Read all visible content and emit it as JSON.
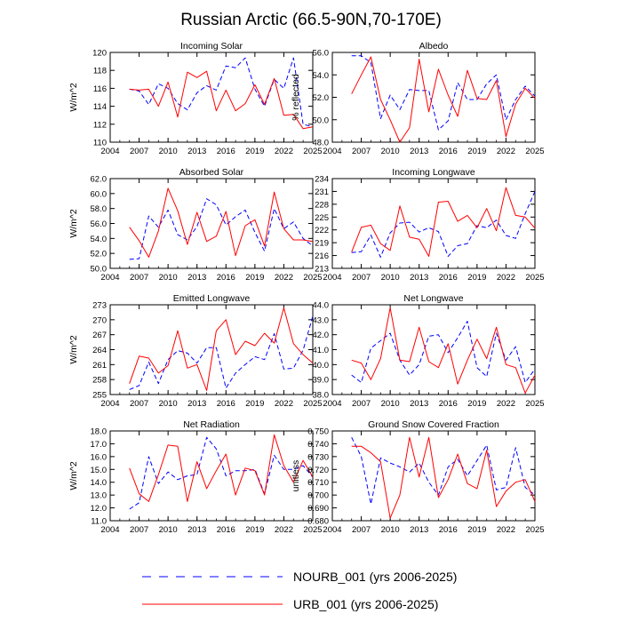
{
  "figure_title": "Russian Arctic (66.5-90N,70-170E)",
  "legend": {
    "entries": [
      {
        "label": "NOURB_001 (yrs 2006-2025)",
        "color": "#0000ff",
        "style": "dashed"
      },
      {
        "label": "URB_001 (yrs 2006-2025)",
        "color": "#ff0000",
        "style": "solid"
      }
    ]
  },
  "chart_data": [
    {
      "type": "line",
      "title": "Incoming Solar",
      "ylabel": "W/m^2",
      "xlim": [
        2004,
        2025
      ],
      "ylim": [
        110,
        120
      ],
      "xticks": [
        2004,
        2007,
        2010,
        2013,
        2016,
        2019,
        2022,
        2025
      ],
      "yticks": [
        110,
        112,
        114,
        116,
        118,
        120
      ],
      "ytick_labels": [
        "110",
        "112",
        "114",
        "116",
        "118",
        "120"
      ],
      "x": [
        2006,
        2007,
        2008,
        2009,
        2010,
        2011,
        2012,
        2013,
        2014,
        2015,
        2016,
        2017,
        2018,
        2019,
        2020,
        2021,
        2022,
        2023,
        2024,
        2025
      ],
      "series": [
        {
          "name": "NOURB_001 (yrs 2006-2025)",
          "color": "#0000ff",
          "style": "dashed",
          "values": [
            115.9,
            115.7,
            114.2,
            116.5,
            116.0,
            114.3,
            113.6,
            115.5,
            116.3,
            115.8,
            118.5,
            118.3,
            119.4,
            115.9,
            114.0,
            117.0,
            116.0,
            119.4,
            112.0,
            111.7
          ]
        },
        {
          "name": "URB_001 (yrs 2006-2025)",
          "color": "#ff0000",
          "style": "solid",
          "values": [
            115.9,
            115.8,
            115.9,
            114.0,
            116.7,
            112.8,
            117.8,
            117.2,
            117.9,
            113.5,
            115.8,
            113.5,
            114.3,
            116.4,
            114.2,
            117.1,
            113.0,
            113.1,
            111.5,
            111.7
          ]
        }
      ]
    },
    {
      "type": "line",
      "title": "Albedo",
      "ylabel": "% reflected",
      "xlim": [
        2004,
        2025
      ],
      "ylim": [
        48,
        56
      ],
      "xticks": [
        2004,
        2007,
        2010,
        2013,
        2016,
        2019,
        2022,
        2025
      ],
      "yticks": [
        48,
        50,
        52,
        54,
        56
      ],
      "ytick_labels": [
        "48.0",
        "50.0",
        "52.0",
        "54.0",
        "56.0"
      ],
      "x": [
        2006,
        2007,
        2008,
        2009,
        2010,
        2011,
        2012,
        2013,
        2014,
        2015,
        2016,
        2017,
        2018,
        2019,
        2020,
        2021,
        2022,
        2023,
        2024,
        2025
      ],
      "series": [
        {
          "name": "NOURB_001 (yrs 2006-2025)",
          "color": "#0000ff",
          "style": "dashed",
          "values": [
            55.7,
            55.7,
            55.1,
            50.1,
            52.2,
            50.9,
            52.7,
            52.6,
            52.6,
            49.1,
            49.9,
            53.3,
            51.8,
            51.8,
            53.2,
            54.0,
            50.0,
            51.8,
            53.0,
            52.1
          ]
        },
        {
          "name": "URB_001 (yrs 2006-2025)",
          "color": "#ff0000",
          "style": "solid",
          "values": [
            52.3,
            54.0,
            55.6,
            51.8,
            50.0,
            48.0,
            49.3,
            55.4,
            50.7,
            54.5,
            52.2,
            50.3,
            54.4,
            51.9,
            51.8,
            53.5,
            48.5,
            51.4,
            52.8,
            51.9
          ]
        }
      ]
    },
    {
      "type": "line",
      "title": "Absorbed Solar",
      "ylabel": "W/m^2",
      "xlim": [
        2004,
        2025
      ],
      "ylim": [
        50,
        62
      ],
      "xticks": [
        2004,
        2007,
        2010,
        2013,
        2016,
        2019,
        2022,
        2025
      ],
      "yticks": [
        50,
        52,
        54,
        56,
        58,
        60,
        62
      ],
      "ytick_labels": [
        "50.0",
        "52.0",
        "54.0",
        "56.0",
        "58.0",
        "60.0",
        "62.0"
      ],
      "x": [
        2006,
        2007,
        2008,
        2009,
        2010,
        2011,
        2012,
        2013,
        2014,
        2015,
        2016,
        2017,
        2018,
        2019,
        2020,
        2021,
        2022,
        2023,
        2024,
        2025
      ],
      "series": [
        {
          "name": "NOURB_001 (yrs 2006-2025)",
          "color": "#0000ff",
          "style": "dashed",
          "values": [
            51.2,
            51.3,
            57.0,
            55.5,
            57.8,
            54.5,
            53.8,
            55.6,
            59.3,
            58.5,
            55.8,
            56.9,
            57.8,
            54.8,
            52.3,
            58.0,
            55.3,
            56.2,
            54.0,
            53.0
          ]
        },
        {
          "name": "URB_001 (yrs 2006-2025)",
          "color": "#ff0000",
          "style": "solid",
          "values": [
            55.5,
            53.7,
            51.5,
            55.0,
            60.7,
            57.7,
            53.2,
            57.5,
            53.6,
            54.3,
            57.6,
            51.7,
            55.7,
            56.5,
            53.0,
            60.2,
            55.3,
            53.8,
            53.8,
            53.6
          ]
        }
      ]
    },
    {
      "type": "line",
      "title": "Incoming Longwave",
      "ylabel": "",
      "xlim": [
        2004,
        2025
      ],
      "ylim": [
        213,
        234
      ],
      "xticks": [
        2004,
        2007,
        2010,
        2013,
        2016,
        2019,
        2022,
        2025
      ],
      "yticks": [
        213,
        216,
        219,
        222,
        225,
        228,
        231,
        234
      ],
      "ytick_labels": [
        "213",
        "216",
        "219",
        "222",
        "225",
        "228",
        "231",
        "234"
      ],
      "x": [
        2006,
        2007,
        2008,
        2009,
        2010,
        2011,
        2012,
        2013,
        2014,
        2015,
        2016,
        2017,
        2018,
        2019,
        2020,
        2021,
        2022,
        2023,
        2024,
        2025
      ],
      "series": [
        {
          "name": "NOURB_001 (yrs 2006-2025)",
          "color": "#0000ff",
          "style": "dashed",
          "values": [
            216.7,
            216.9,
            220.8,
            215.6,
            221.3,
            223.6,
            223.8,
            221.5,
            222.5,
            221.6,
            215.8,
            218.3,
            218.8,
            223.0,
            222.5,
            224.3,
            220.7,
            220.0,
            225.8,
            231.0
          ]
        },
        {
          "name": "URB_001 (yrs 2006-2025)",
          "color": "#ff0000",
          "style": "solid",
          "values": [
            216.8,
            222.6,
            223.1,
            218.8,
            217.2,
            227.6,
            220.3,
            219.8,
            215.8,
            228.5,
            228.7,
            224.0,
            225.4,
            222.5,
            227.0,
            221.8,
            231.9,
            225.4,
            225.0,
            222.4
          ]
        }
      ]
    },
    {
      "type": "line",
      "title": "Emitted Longwave",
      "ylabel": "W/m^2",
      "xlim": [
        2004,
        2025
      ],
      "ylim": [
        255,
        273
      ],
      "xticks": [
        2004,
        2007,
        2010,
        2013,
        2016,
        2019,
        2022,
        2025
      ],
      "yticks": [
        255,
        258,
        261,
        264,
        267,
        270,
        273
      ],
      "ytick_labels": [
        "255",
        "258",
        "261",
        "264",
        "267",
        "270",
        "273"
      ],
      "x": [
        2006,
        2007,
        2008,
        2009,
        2010,
        2011,
        2012,
        2013,
        2014,
        2015,
        2016,
        2017,
        2018,
        2019,
        2020,
        2021,
        2022,
        2023,
        2024,
        2025
      ],
      "series": [
        {
          "name": "NOURB_001 (yrs 2006-2025)",
          "color": "#0000ff",
          "style": "dashed",
          "values": [
            256.0,
            256.8,
            261.5,
            257.2,
            262.0,
            263.8,
            263.3,
            261.3,
            264.4,
            264.4,
            256.3,
            259.3,
            261.0,
            262.6,
            262.0,
            267.2,
            260.1,
            260.3,
            263.9,
            270.7
          ]
        },
        {
          "name": "URB_001 (yrs 2006-2025)",
          "color": "#ff0000",
          "style": "solid",
          "values": [
            257.2,
            262.7,
            262.3,
            259.3,
            260.8,
            267.8,
            260.3,
            261.0,
            255.8,
            267.8,
            270.0,
            263.0,
            265.7,
            264.8,
            267.3,
            265.3,
            272.4,
            265.2,
            263.0,
            261.3
          ]
        }
      ]
    },
    {
      "type": "line",
      "title": "Net Longwave",
      "ylabel": "",
      "xlim": [
        2004,
        2025
      ],
      "ylim": [
        38,
        44
      ],
      "xticks": [
        2004,
        2007,
        2010,
        2013,
        2016,
        2019,
        2022,
        2025
      ],
      "yticks": [
        38,
        39,
        40,
        41,
        42,
        43,
        44
      ],
      "ytick_labels": [
        "38.0",
        "39.0",
        "40.0",
        "41.0",
        "42.0",
        "43.0",
        "44.0"
      ],
      "x": [
        2006,
        2007,
        2008,
        2009,
        2010,
        2011,
        2012,
        2013,
        2014,
        2015,
        2016,
        2017,
        2018,
        2019,
        2020,
        2021,
        2022,
        2023,
        2024,
        2025
      ],
      "series": [
        {
          "name": "NOURB_001 (yrs 2006-2025)",
          "color": "#0000ff",
          "style": "dashed",
          "values": [
            39.3,
            38.8,
            41.1,
            41.6,
            42.1,
            40.3,
            39.3,
            40.0,
            41.9,
            42.0,
            40.8,
            41.8,
            42.9,
            39.8,
            39.2,
            42.1,
            40.3,
            41.2,
            38.8,
            39.7
          ]
        },
        {
          "name": "URB_001 (yrs 2006-2025)",
          "color": "#ff0000",
          "style": "solid",
          "values": [
            40.3,
            40.1,
            39.0,
            40.4,
            43.8,
            40.3,
            40.2,
            42.5,
            40.2,
            39.8,
            41.4,
            38.7,
            40.3,
            41.7,
            40.4,
            42.5,
            40.0,
            39.8,
            38.1,
            39.3
          ]
        }
      ]
    },
    {
      "type": "line",
      "title": "Net Radiation",
      "ylabel": "W/m^2",
      "xlim": [
        2004,
        2025
      ],
      "ylim": [
        11,
        18
      ],
      "xticks": [
        2004,
        2007,
        2010,
        2013,
        2016,
        2019,
        2022,
        2025
      ],
      "yticks": [
        11,
        12,
        13,
        14,
        15,
        16,
        17,
        18
      ],
      "ytick_labels": [
        "11.0",
        "12.0",
        "13.0",
        "14.0",
        "15.0",
        "16.0",
        "17.0",
        "18.0"
      ],
      "x": [
        2006,
        2007,
        2008,
        2009,
        2010,
        2011,
        2012,
        2013,
        2014,
        2015,
        2016,
        2017,
        2018,
        2019,
        2020,
        2021,
        2022,
        2023,
        2024,
        2025
      ],
      "series": [
        {
          "name": "NOURB_001 (yrs 2006-2025)",
          "color": "#0000ff",
          "style": "dashed",
          "values": [
            11.9,
            12.4,
            16.0,
            13.9,
            14.8,
            14.2,
            14.5,
            14.6,
            17.5,
            16.6,
            14.5,
            14.9,
            14.9,
            15.0,
            13.1,
            16.1,
            15.0,
            15.0,
            15.3,
            14.4
          ]
        },
        {
          "name": "URB_001 (yrs 2006-2025)",
          "color": "#ff0000",
          "style": "solid",
          "values": [
            15.1,
            13.1,
            12.5,
            14.6,
            16.9,
            16.8,
            12.5,
            15.6,
            13.5,
            14.9,
            16.2,
            13.0,
            15.1,
            14.9,
            13.0,
            17.7,
            15.3,
            14.0,
            15.7,
            14.4
          ]
        }
      ]
    },
    {
      "type": "line",
      "title": "Ground Snow Covered Fraction",
      "ylabel": "unitless",
      "xlim": [
        2004,
        2025
      ],
      "ylim": [
        0.68,
        0.75
      ],
      "xticks": [
        2004,
        2007,
        2010,
        2013,
        2016,
        2019,
        2022,
        2025
      ],
      "yticks": [
        0.68,
        0.69,
        0.7,
        0.71,
        0.72,
        0.73,
        0.74,
        0.75
      ],
      "ytick_labels": [
        "0.680",
        "0.690",
        "0.700",
        "0.710",
        "0.720",
        "0.730",
        "0.740",
        "0.750"
      ],
      "x": [
        2006,
        2007,
        2008,
        2009,
        2010,
        2011,
        2012,
        2013,
        2014,
        2015,
        2016,
        2017,
        2018,
        2019,
        2020,
        2021,
        2022,
        2023,
        2024,
        2025
      ],
      "series": [
        {
          "name": "NOURB_001 (yrs 2006-2025)",
          "color": "#0000ff",
          "style": "dashed",
          "values": [
            0.745,
            0.73,
            0.693,
            0.729,
            0.725,
            0.722,
            0.718,
            0.725,
            0.71,
            0.7,
            0.722,
            0.728,
            0.715,
            0.727,
            0.739,
            0.704,
            0.706,
            0.737,
            0.706,
            0.7
          ]
        },
        {
          "name": "URB_001 (yrs 2006-2025)",
          "color": "#ff0000",
          "style": "solid",
          "values": [
            0.738,
            0.738,
            0.733,
            0.726,
            0.682,
            0.7,
            0.745,
            0.714,
            0.745,
            0.698,
            0.712,
            0.732,
            0.709,
            0.705,
            0.735,
            0.691,
            0.703,
            0.71,
            0.712,
            0.695
          ]
        }
      ]
    }
  ]
}
